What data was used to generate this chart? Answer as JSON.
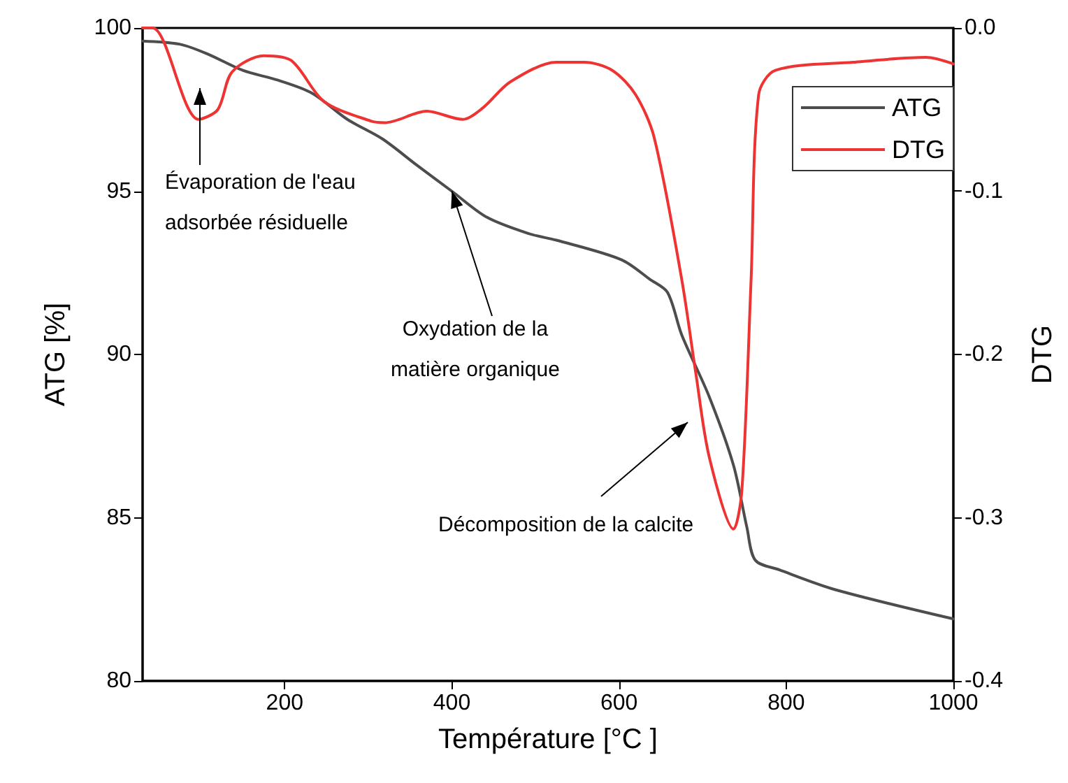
{
  "chart_data": {
    "type": "line",
    "xlabel": "Température [°C ]",
    "ylabel": "ATG [%]",
    "y2label": "DTG",
    "xlim": [
      30,
      1000
    ],
    "xticks": [
      200,
      400,
      600,
      800,
      1000
    ],
    "ylim": [
      80,
      100
    ],
    "yticks": [
      80,
      85,
      90,
      95,
      100
    ],
    "y2lim": [
      -0.4,
      0
    ],
    "y2ticks": [
      -0.4,
      -0.3,
      -0.2,
      -0.1,
      {
        "value": 0,
        "label": "0.0"
      }
    ],
    "grid": false,
    "legend": "top right",
    "marker": "none",
    "line_style": "solid",
    "series": [
      {
        "name": "ATG",
        "color": "#4d4d4d",
        "x": [
          30,
          75,
          108,
          150,
          192,
          233,
          275,
          317,
          358,
          400,
          442,
          492,
          525,
          603,
          637,
          658,
          675,
          708,
          737,
          753,
          763,
          792,
          858,
          1000
        ],
        "values": [
          99.6,
          99.5,
          99.2,
          98.7,
          98.4,
          98.0,
          97.2,
          96.6,
          95.8,
          95.0,
          94.2,
          93.7,
          93.5,
          92.9,
          92.3,
          91.9,
          90.6,
          88.7,
          86.6,
          84.7,
          83.7,
          83.4,
          82.8,
          81.9
        ]
      },
      {
        "name": "DTG",
        "color": "#ee3333",
        "axis": "y2",
        "x": [
          30,
          42,
          97,
          120,
          137,
          175,
          208,
          247,
          303,
          320,
          370,
          413,
          437,
          470,
          525,
          558,
          592,
          620,
          642,
          675,
          692,
          708,
          737,
          747,
          758,
          767,
          787,
          880,
          967,
          1000
        ],
        "values": [
          0.0,
          0.0,
          -0.056,
          -0.05,
          -0.027,
          -0.017,
          -0.02,
          -0.045,
          -0.057,
          -0.058,
          -0.051,
          -0.056,
          -0.049,
          -0.033,
          -0.021,
          -0.021,
          -0.026,
          -0.041,
          -0.067,
          -0.154,
          -0.212,
          -0.263,
          -0.307,
          -0.283,
          -0.154,
          -0.041,
          -0.026,
          -0.021,
          -0.018,
          -0.022
        ]
      }
    ],
    "annotations": [
      "Évaporation de l'eau\nadsorbée résiduelle",
      {
        "text": "Oxydation de la\nmatière organique",
        "x": 400,
        "y": 95.0
      },
      "Décomposition de la calcite"
    ]
  }
}
